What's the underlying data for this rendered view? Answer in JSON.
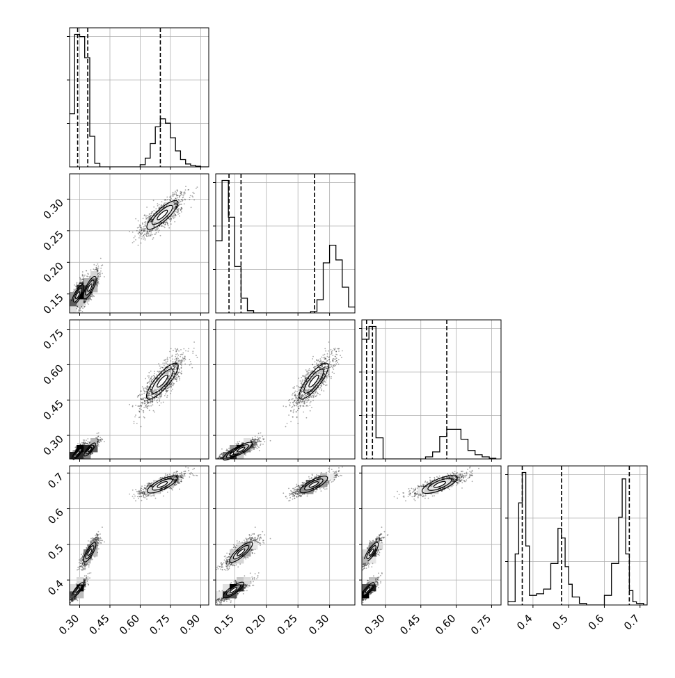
{
  "chart_data": {
    "type": "corner",
    "grid": true,
    "parameters": [
      {
        "ticks": [
          "0.30",
          "0.45",
          "0.60",
          "0.75",
          "0.90"
        ],
        "tick_values": [
          0.3,
          0.45,
          0.6,
          0.75,
          0.9
        ],
        "range": [
          0.25,
          0.94
        ],
        "quantiles": [
          0.29,
          0.34,
          0.7
        ],
        "histogram": {
          "edges": [
            0.25,
            0.275,
            0.3,
            0.325,
            0.35,
            0.375,
            0.4,
            0.425,
            0.45,
            0.475,
            0.5,
            0.525,
            0.55,
            0.575,
            0.6,
            0.625,
            0.65,
            0.675,
            0.7,
            0.725,
            0.75,
            0.775,
            0.8,
            0.825,
            0.85,
            0.875,
            0.9,
            0.925,
            0.94
          ],
          "counts": [
            73,
            182,
            179,
            150,
            42,
            5,
            0,
            0,
            0,
            0,
            0,
            0,
            0,
            0,
            3,
            12,
            32,
            55,
            66,
            60,
            40,
            22,
            10,
            4,
            2,
            1,
            0,
            0
          ]
        }
      },
      {
        "ticks": [
          "0.15",
          "0.20",
          "0.25",
          "0.30"
        ],
        "tick_values": [
          0.15,
          0.2,
          0.25,
          0.3
        ],
        "range": [
          0.12,
          0.34
        ],
        "quantiles": [
          0.141,
          0.16,
          0.276
        ],
        "histogram": {
          "edges": [
            0.12,
            0.13,
            0.14,
            0.15,
            0.16,
            0.17,
            0.18,
            0.19,
            0.2,
            0.21,
            0.22,
            0.23,
            0.24,
            0.25,
            0.26,
            0.27,
            0.28,
            0.29,
            0.3,
            0.31,
            0.32,
            0.33,
            0.34
          ],
          "counts": [
            98,
            180,
            130,
            63,
            20,
            3,
            0,
            0,
            0,
            0,
            0,
            0,
            0,
            0,
            0,
            2,
            18,
            68,
            92,
            72,
            35,
            8
          ]
        }
      },
      {
        "ticks": [
          "0.30",
          "0.45",
          "0.60",
          "0.75"
        ],
        "tick_values": [
          0.3,
          0.45,
          0.6,
          0.75
        ],
        "range": [
          0.2,
          0.79
        ],
        "quantiles": [
          0.22,
          0.245,
          0.56
        ],
        "histogram": {
          "edges": [
            0.2,
            0.23,
            0.26,
            0.29,
            0.32,
            0.35,
            0.38,
            0.41,
            0.44,
            0.47,
            0.5,
            0.53,
            0.56,
            0.59,
            0.62,
            0.65,
            0.68,
            0.71,
            0.74,
            0.77
          ],
          "counts": [
            170,
            188,
            30,
            0,
            0,
            0,
            0,
            0,
            0,
            3,
            10,
            32,
            42,
            42,
            28,
            12,
            6,
            3,
            1
          ]
        }
      },
      {
        "ticks": [
          "0.4",
          "0.5",
          "0.6",
          "0.7"
        ],
        "tick_values": [
          0.4,
          0.5,
          0.6,
          0.7
        ],
        "range": [
          0.33,
          0.72
        ],
        "quantiles": [
          0.37,
          0.48,
          0.67
        ],
        "histogram": {
          "edges": [
            0.33,
            0.35,
            0.36,
            0.37,
            0.38,
            0.39,
            0.41,
            0.43,
            0.45,
            0.47,
            0.48,
            0.49,
            0.5,
            0.51,
            0.53,
            0.55,
            0.58,
            0.6,
            0.62,
            0.64,
            0.65,
            0.66,
            0.67,
            0.68,
            0.69,
            0.71,
            0.72
          ],
          "counts": [
            2,
            32,
            64,
            83,
            37,
            6,
            7,
            10,
            26,
            48,
            42,
            24,
            13,
            5,
            1,
            0,
            0,
            6,
            26,
            55,
            79,
            32,
            9,
            2,
            1,
            0
          ]
        }
      }
    ],
    "clusters": [
      {
        "center": [
          0.29,
          0.148,
          0.225,
          0.372
        ],
        "spread": [
          0.02,
          0.012,
          0.02,
          0.015
        ],
        "weight": 0.36
      },
      {
        "center": [
          0.35,
          0.16,
          0.24,
          0.478
        ],
        "spread": [
          0.02,
          0.013,
          0.02,
          0.02
        ],
        "weight": 0.3
      },
      {
        "center": [
          0.71,
          0.275,
          0.53,
          0.668
        ],
        "spread": [
          0.055,
          0.016,
          0.055,
          0.015
        ],
        "weight": 0.34
      }
    ]
  }
}
